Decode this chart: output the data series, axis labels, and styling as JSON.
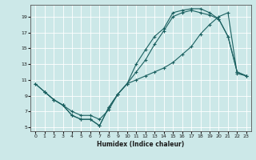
{
  "xlabel": "Humidex (Indice chaleur)",
  "bg_color": "#cce8e8",
  "line_color": "#1a6060",
  "grid_color": "#ffffff",
  "xlim": [
    -0.5,
    23.5
  ],
  "ylim": [
    4.5,
    20.5
  ],
  "xticks": [
    0,
    1,
    2,
    3,
    4,
    5,
    6,
    7,
    8,
    9,
    10,
    11,
    12,
    13,
    14,
    15,
    16,
    17,
    18,
    19,
    20,
    21,
    22,
    23
  ],
  "yticks": [
    5,
    7,
    9,
    11,
    13,
    15,
    17,
    19
  ],
  "line1_x": [
    0,
    1,
    2,
    3,
    4,
    5,
    6,
    7,
    8,
    9,
    10,
    11,
    12,
    13,
    14,
    15,
    16,
    17,
    18,
    19,
    20,
    21,
    22,
    23
  ],
  "line1_y": [
    10.5,
    9.5,
    8.5,
    7.8,
    6.5,
    6.0,
    6.0,
    5.2,
    7.5,
    9.2,
    10.5,
    13.0,
    14.8,
    16.5,
    17.5,
    19.5,
    19.8,
    20.0,
    20.0,
    19.5,
    18.7,
    16.5,
    12.0,
    11.5
  ],
  "line2_x": [
    0,
    1,
    2,
    3,
    4,
    5,
    6,
    7,
    8,
    9,
    10,
    11,
    12,
    13,
    14,
    15,
    16,
    17,
    18,
    19,
    20,
    21,
    22,
    23
  ],
  "line2_y": [
    10.5,
    9.5,
    8.5,
    7.8,
    6.5,
    6.0,
    6.0,
    5.2,
    7.5,
    9.2,
    10.5,
    12.0,
    13.5,
    15.5,
    17.2,
    19.0,
    19.5,
    19.8,
    19.5,
    19.2,
    18.7,
    16.5,
    12.0,
    11.5
  ],
  "line3_x": [
    1,
    2,
    3,
    4,
    5,
    6,
    7,
    8,
    9,
    10,
    11,
    12,
    13,
    14,
    15,
    16,
    17,
    18,
    19,
    20,
    21,
    22,
    23
  ],
  "line3_y": [
    9.5,
    8.5,
    7.8,
    7.0,
    6.5,
    6.5,
    6.0,
    7.2,
    9.2,
    10.5,
    11.0,
    11.5,
    12.0,
    12.5,
    13.2,
    14.2,
    15.2,
    16.8,
    18.0,
    19.0,
    19.5,
    11.8,
    11.5
  ]
}
